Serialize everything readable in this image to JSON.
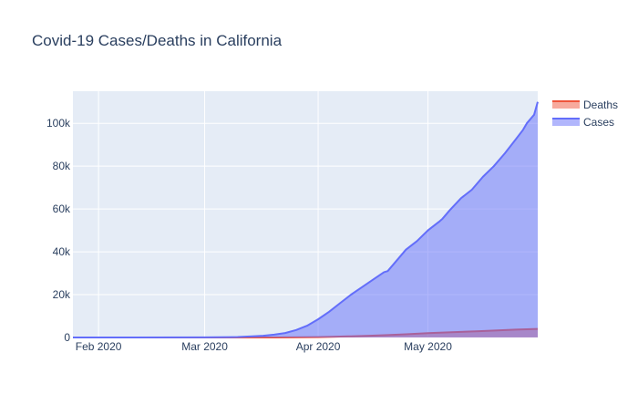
{
  "chart_data": {
    "type": "area",
    "title": "Covid-19 Cases/Deaths in California",
    "xlabel": "",
    "ylabel": "",
    "x_type": "date",
    "xlim": [
      "2020-01-25",
      "2020-05-31"
    ],
    "ylim": [
      0,
      115000
    ],
    "x_ticks": [
      {
        "date": "2020-02-01",
        "label": "Feb 2020"
      },
      {
        "date": "2020-03-01",
        "label": "Mar 2020"
      },
      {
        "date": "2020-04-01",
        "label": "Apr 2020"
      },
      {
        "date": "2020-05-01",
        "label": "May 2020"
      }
    ],
    "y_ticks": [
      {
        "value": 0,
        "label": "0"
      },
      {
        "value": 20000,
        "label": "20k"
      },
      {
        "value": 40000,
        "label": "40k"
      },
      {
        "value": 60000,
        "label": "60k"
      },
      {
        "value": 80000,
        "label": "80k"
      },
      {
        "value": 100000,
        "label": "100k"
      }
    ],
    "grid": true,
    "legend_position": "top-right",
    "series": [
      {
        "name": "Deaths",
        "color": "#EF553B",
        "points": [
          [
            "2020-01-25",
            0
          ],
          [
            "2020-02-15",
            0
          ],
          [
            "2020-03-01",
            0
          ],
          [
            "2020-03-15",
            5
          ],
          [
            "2020-03-20",
            20
          ],
          [
            "2020-03-25",
            60
          ],
          [
            "2020-04-01",
            180
          ],
          [
            "2020-04-05",
            340
          ],
          [
            "2020-04-10",
            550
          ],
          [
            "2020-04-15",
            800
          ],
          [
            "2020-04-20",
            1100
          ],
          [
            "2020-04-25",
            1500
          ],
          [
            "2020-05-01",
            2000
          ],
          [
            "2020-05-05",
            2300
          ],
          [
            "2020-05-10",
            2600
          ],
          [
            "2020-05-15",
            2950
          ],
          [
            "2020-05-20",
            3300
          ],
          [
            "2020-05-25",
            3650
          ],
          [
            "2020-05-31",
            4000
          ]
        ]
      },
      {
        "name": "Cases",
        "color": "#636EFA",
        "points": [
          [
            "2020-01-25",
            0
          ],
          [
            "2020-02-10",
            0
          ],
          [
            "2020-03-01",
            50
          ],
          [
            "2020-03-10",
            200
          ],
          [
            "2020-03-14",
            500
          ],
          [
            "2020-03-17",
            800
          ],
          [
            "2020-03-20",
            1300
          ],
          [
            "2020-03-23",
            2100
          ],
          [
            "2020-03-26",
            3500
          ],
          [
            "2020-03-29",
            5500
          ],
          [
            "2020-04-01",
            8500
          ],
          [
            "2020-04-04",
            12000
          ],
          [
            "2020-04-07",
            16000
          ],
          [
            "2020-04-10",
            20000
          ],
          [
            "2020-04-13",
            23500
          ],
          [
            "2020-04-16",
            27000
          ],
          [
            "2020-04-19",
            30500
          ],
          [
            "2020-04-20",
            31000
          ],
          [
            "2020-04-22",
            35000
          ],
          [
            "2020-04-25",
            41000
          ],
          [
            "2020-04-28",
            45000
          ],
          [
            "2020-05-01",
            50000
          ],
          [
            "2020-05-04",
            54000
          ],
          [
            "2020-05-05",
            55500
          ],
          [
            "2020-05-07",
            59500
          ],
          [
            "2020-05-10",
            65000
          ],
          [
            "2020-05-13",
            69000
          ],
          [
            "2020-05-16",
            75000
          ],
          [
            "2020-05-19",
            80000
          ],
          [
            "2020-05-22",
            86000
          ],
          [
            "2020-05-25",
            92500
          ],
          [
            "2020-05-27",
            97000
          ],
          [
            "2020-05-28",
            100000
          ],
          [
            "2020-05-30",
            104000
          ],
          [
            "2020-05-31",
            110000
          ]
        ]
      }
    ]
  }
}
